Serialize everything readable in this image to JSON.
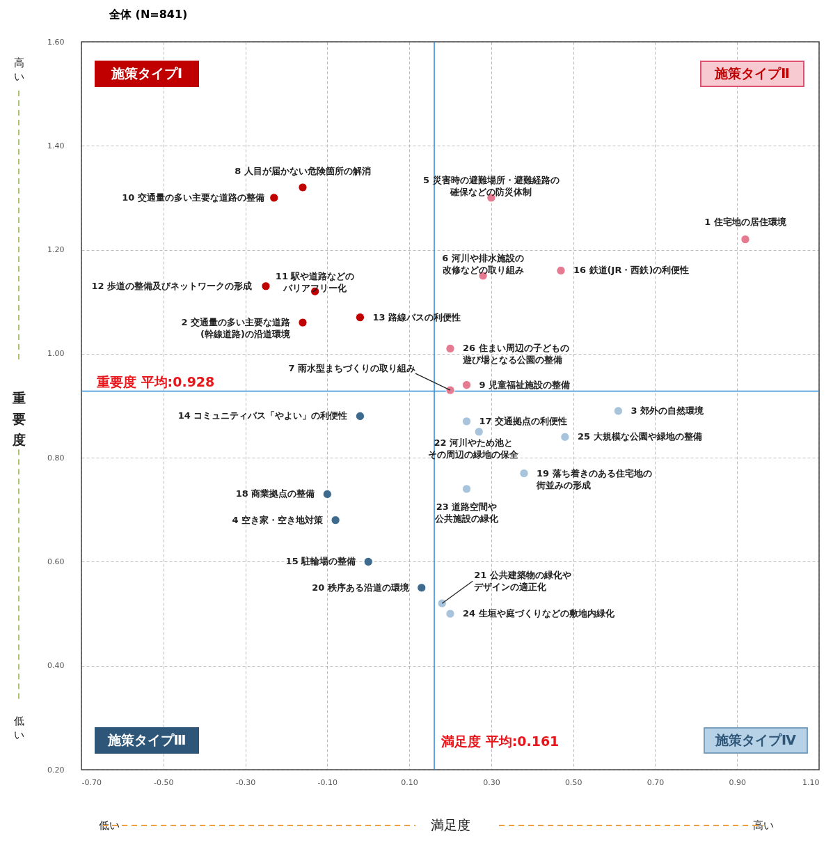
{
  "chart_data": {
    "type": "scatter",
    "title": "全体 (N=841)",
    "xlabel": "満足度",
    "ylabel": "重要度",
    "xlim": [
      -0.7,
      1.1
    ],
    "xticks": [
      {
        "value": -0.7,
        "label": "-0.70"
      },
      {
        "value": -0.5,
        "label": "-0.50"
      },
      {
        "value": -0.3,
        "label": "-0.30"
      },
      {
        "value": -0.1,
        "label": "-0.10"
      },
      {
        "value": 0.1,
        "label": "0.10"
      },
      {
        "value": 0.3,
        "label": "0.30"
      },
      {
        "value": 0.5,
        "label": "0.50"
      },
      {
        "value": 0.7,
        "label": "0.70"
      },
      {
        "value": 0.9,
        "label": "0.90"
      },
      {
        "value": 1.1,
        "label": "1.10"
      }
    ],
    "ylim": [
      0.2,
      1.6
    ],
    "yticks": [
      {
        "value": 0.2,
        "label": "0.20"
      },
      {
        "value": 0.4,
        "label": "0.40"
      },
      {
        "value": 0.6,
        "label": "0.60"
      },
      {
        "value": 0.8,
        "label": "0.80"
      },
      {
        "value": 1.0,
        "label": "1.00"
      },
      {
        "value": 1.2,
        "label": "1.20"
      },
      {
        "value": 1.4,
        "label": "1.40"
      },
      {
        "value": 1.6,
        "label": "1.60"
      }
    ],
    "grid": true,
    "marker": "circle",
    "series": [
      {
        "color": "#c00000",
        "x": [
          -0.16,
          -0.23,
          -0.25,
          -0.13,
          -0.16,
          -0.02
        ],
        "values": [
          1.32,
          1.3,
          1.13,
          1.12,
          1.06,
          1.07
        ]
      },
      {
        "color": "#e57a90",
        "x": [
          0.3,
          0.92,
          0.28,
          0.47,
          0.2,
          0.2,
          0.24
        ],
        "values": [
          1.3,
          1.22,
          1.15,
          1.16,
          1.01,
          0.93,
          0.94
        ]
      },
      {
        "color": "#3e6a8e",
        "x": [
          -0.02,
          -0.1,
          -0.08,
          0.0,
          0.13
        ],
        "values": [
          0.88,
          0.73,
          0.68,
          0.6,
          0.55
        ]
      },
      {
        "color": "#a8c4dc",
        "x": [
          0.61,
          0.24,
          0.27,
          0.48,
          0.38,
          0.24,
          0.18,
          0.2
        ],
        "values": [
          0.89,
          0.87,
          0.85,
          0.84,
          0.77,
          0.74,
          0.52,
          0.5
        ]
      }
    ],
    "ref_lines": [
      {
        "axis": "y",
        "value": 0.928,
        "label": "重要度 平均:0.928",
        "color": "#2e8bd6"
      },
      {
        "axis": "x",
        "value": 0.161,
        "label": "満足度 平均:0.161",
        "color": "#2e8bd6"
      }
    ],
    "annotations": [
      {
        "text": "8 人目が届かない危険箇所の解消",
        "x": -0.16,
        "y": 1.32
      },
      {
        "text": "10 交通量の多い主要な道路の整備",
        "x": -0.23,
        "y": 1.3
      },
      {
        "text": "12 歩道の整備及びネットワークの形成",
        "x": -0.25,
        "y": 1.13
      },
      {
        "text": "11 駅や道路などのバリアフリー化",
        "x": -0.13,
        "y": 1.12
      },
      {
        "text": "2 交通量の多い主要な道路(幹線道路)の沿道環境",
        "x": -0.16,
        "y": 1.06
      },
      {
        "text": "13 路線バスの利便性",
        "x": -0.02,
        "y": 1.07
      },
      {
        "text": "5 災害時の避難場所・避難経路の確保などの防災体制",
        "x": 0.3,
        "y": 1.3
      },
      {
        "text": "1 住宅地の居住環境",
        "x": 0.92,
        "y": 1.22
      },
      {
        "text": "6 河川や排水施設の改修などの取り組み",
        "x": 0.28,
        "y": 1.15
      },
      {
        "text": "16 鉄道(JR・西鉄)の利便性",
        "x": 0.47,
        "y": 1.16
      },
      {
        "text": "26 住まい周辺の子どもの遊び場となる公園の整備",
        "x": 0.2,
        "y": 1.01
      },
      {
        "text": "7 雨水型まちづくりの取り組み",
        "x": 0.2,
        "y": 0.93
      },
      {
        "text": "9 児童福祉施設の整備",
        "x": 0.24,
        "y": 0.94
      },
      {
        "text": "14 コミュニティバス「やよい」の利便性",
        "x": -0.02,
        "y": 0.88
      },
      {
        "text": "18 商業拠点の整備",
        "x": -0.1,
        "y": 0.73
      },
      {
        "text": "4 空き家・空き地対策",
        "x": -0.08,
        "y": 0.68
      },
      {
        "text": "15 駐輪場の整備",
        "x": 0.0,
        "y": 0.6
      },
      {
        "text": "20 秩序ある沿道の環境",
        "x": 0.13,
        "y": 0.55
      },
      {
        "text": "3 郊外の自然環境",
        "x": 0.61,
        "y": 0.89
      },
      {
        "text": "17 交通拠点の利便性",
        "x": 0.24,
        "y": 0.87
      },
      {
        "text": "22 河川やため池とその周辺の緑地の保全",
        "x": 0.27,
        "y": 0.85
      },
      {
        "text": "25 大規模な公園や緑地の整備",
        "x": 0.48,
        "y": 0.84
      },
      {
        "text": "19 落ち着きのある住宅地の街並みの形成",
        "x": 0.38,
        "y": 0.77
      },
      {
        "text": "23 道路空間や公共施設の緑化",
        "x": 0.24,
        "y": 0.74
      },
      {
        "text": "21 公共建築物の緑化やデザインの適正化",
        "x": 0.18,
        "y": 0.52
      },
      {
        "text": "24 生垣や庭づくりなどの敷地内緑化",
        "x": 0.2,
        "y": 0.5
      },
      "施策タイプⅠ",
      "施策タイプⅡ",
      "施策タイプⅢ",
      "施策タイプⅣ",
      "高い",
      "低い",
      "低い",
      "高い"
    ]
  }
}
